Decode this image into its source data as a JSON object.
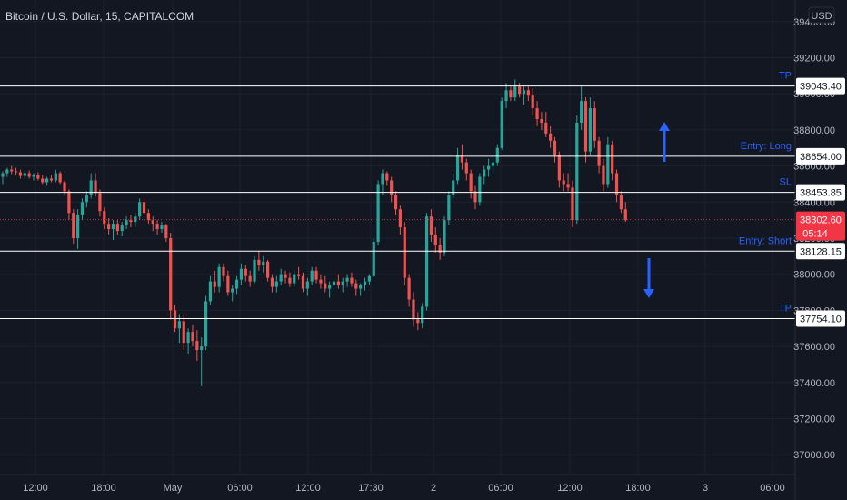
{
  "header": {
    "title": "Bitcoin / U.S. Dollar, 15, CAPITALCOM"
  },
  "price_axis": {
    "currency_label": "USD"
  },
  "colors": {
    "background": "#131722",
    "grid": "#1e222d",
    "up": "#26a69a",
    "down": "#ef5350",
    "level_line": "#ffffff",
    "annotation": "#2962ff",
    "current_price": "#f23645"
  },
  "chart_data": {
    "type": "candlestick",
    "title": "Bitcoin / U.S. Dollar, 15, CAPITALCOM",
    "xlabel": "",
    "ylabel": "",
    "ylim": [
      36890,
      39520
    ],
    "y_ticks": [
      37000,
      37200,
      37400,
      37600,
      37800,
      38000,
      38200,
      38400,
      38600,
      38800,
      39000,
      39200,
      39400
    ],
    "y_tick_labels": [
      "37000.00",
      "37200.00",
      "37400.00",
      "37600.00",
      "37800.00",
      "38000.00",
      "38200.00",
      "38400.00",
      "38600.00",
      "38800.00",
      "39000.00",
      "39200.00",
      "39400.00"
    ],
    "x_tick_labels": [
      "12:00",
      "18:00",
      "May",
      "06:00",
      "12:00",
      "17:30",
      "2",
      "06:00",
      "12:00",
      "18:00",
      "3",
      "06:00"
    ],
    "grid": true,
    "price_scale": "right",
    "candles": [
      [
        38540,
        38570,
        38500,
        38560
      ],
      [
        38560,
        38590,
        38540,
        38580
      ],
      [
        38580,
        38600,
        38555,
        38570
      ],
      [
        38570,
        38590,
        38550,
        38565
      ],
      [
        38565,
        38580,
        38530,
        38545
      ],
      [
        38545,
        38570,
        38530,
        38560
      ],
      [
        38560,
        38575,
        38530,
        38540
      ],
      [
        38540,
        38560,
        38520,
        38550
      ],
      [
        38550,
        38565,
        38520,
        38530
      ],
      [
        38530,
        38550,
        38500,
        38510
      ],
      [
        38510,
        38540,
        38490,
        38530
      ],
      [
        38530,
        38550,
        38510,
        38520
      ],
      [
        38520,
        38580,
        38510,
        38560
      ],
      [
        38560,
        38570,
        38500,
        38510
      ],
      [
        38510,
        38520,
        38440,
        38460
      ],
      [
        38460,
        38470,
        38300,
        38340
      ],
      [
        38340,
        38360,
        38170,
        38200
      ],
      [
        38200,
        38360,
        38140,
        38330
      ],
      [
        38330,
        38420,
        38300,
        38400
      ],
      [
        38400,
        38460,
        38370,
        38440
      ],
      [
        38440,
        38560,
        38420,
        38520
      ],
      [
        38520,
        38560,
        38430,
        38450
      ],
      [
        38450,
        38470,
        38320,
        38350
      ],
      [
        38350,
        38370,
        38250,
        38280
      ],
      [
        38280,
        38310,
        38220,
        38250
      ],
      [
        38250,
        38300,
        38190,
        38280
      ],
      [
        38280,
        38300,
        38220,
        38240
      ],
      [
        38240,
        38290,
        38210,
        38270
      ],
      [
        38270,
        38320,
        38250,
        38300
      ],
      [
        38300,
        38330,
        38260,
        38290
      ],
      [
        38290,
        38340,
        38260,
        38320
      ],
      [
        38320,
        38420,
        38300,
        38400
      ],
      [
        38400,
        38420,
        38320,
        38340
      ],
      [
        38340,
        38360,
        38280,
        38300
      ],
      [
        38300,
        38320,
        38240,
        38280
      ],
      [
        38280,
        38300,
        38220,
        38250
      ],
      [
        38250,
        38290,
        38230,
        38270
      ],
      [
        38270,
        38280,
        38180,
        38200
      ],
      [
        38200,
        38230,
        37750,
        37800
      ],
      [
        37800,
        37830,
        37680,
        37700
      ],
      [
        37700,
        37780,
        37620,
        37740
      ],
      [
        37740,
        37780,
        37580,
        37620
      ],
      [
        37620,
        37700,
        37560,
        37680
      ],
      [
        37680,
        37720,
        37600,
        37630
      ],
      [
        37630,
        37690,
        37520,
        37580
      ],
      [
        37580,
        37650,
        37380,
        37600
      ],
      [
        37600,
        37880,
        37580,
        37850
      ],
      [
        37850,
        37990,
        37830,
        37960
      ],
      [
        37960,
        38020,
        37900,
        37930
      ],
      [
        37930,
        38060,
        37900,
        38040
      ],
      [
        38040,
        38060,
        37960,
        37990
      ],
      [
        37990,
        38020,
        37880,
        37900
      ],
      [
        37900,
        37940,
        37850,
        37920
      ],
      [
        37920,
        37990,
        37890,
        37970
      ],
      [
        37970,
        38060,
        37940,
        38030
      ],
      [
        38030,
        38050,
        37960,
        37990
      ],
      [
        37990,
        38020,
        37930,
        37960
      ],
      [
        37960,
        38100,
        37950,
        38080
      ],
      [
        38080,
        38130,
        38020,
        38050
      ],
      [
        38050,
        38100,
        38010,
        38070
      ],
      [
        38070,
        38080,
        37960,
        37980
      ],
      [
        37980,
        38000,
        37900,
        37930
      ],
      [
        37930,
        37990,
        37900,
        37960
      ],
      [
        37960,
        38030,
        37940,
        38000
      ],
      [
        38000,
        38020,
        37950,
        37980
      ],
      [
        37980,
        38010,
        37930,
        37950
      ],
      [
        37950,
        38020,
        37930,
        38000
      ],
      [
        38000,
        38040,
        37970,
        37990
      ],
      [
        37990,
        38010,
        37900,
        37920
      ],
      [
        37920,
        37980,
        37880,
        37960
      ],
      [
        37960,
        38040,
        37940,
        38020
      ],
      [
        38020,
        38040,
        37950,
        37970
      ],
      [
        37970,
        38000,
        37920,
        37950
      ],
      [
        37950,
        37990,
        37900,
        37920
      ],
      [
        37920,
        37960,
        37870,
        37940
      ],
      [
        37940,
        37980,
        37900,
        37960
      ],
      [
        37960,
        38000,
        37920,
        37940
      ],
      [
        37940,
        37980,
        37900,
        37960
      ],
      [
        37960,
        38000,
        37930,
        37980
      ],
      [
        37980,
        38010,
        37930,
        37950
      ],
      [
        37950,
        37970,
        37880,
        37920
      ],
      [
        37920,
        37950,
        37880,
        37940
      ],
      [
        37940,
        37980,
        37910,
        37960
      ],
      [
        37960,
        38000,
        37940,
        37990
      ],
      [
        37990,
        38200,
        37980,
        38180
      ],
      [
        38180,
        38520,
        38160,
        38500
      ],
      [
        38500,
        38580,
        38440,
        38560
      ],
      [
        38560,
        38570,
        38490,
        38520
      ],
      [
        38520,
        38540,
        38400,
        38440
      ],
      [
        38440,
        38460,
        38330,
        38360
      ],
      [
        38360,
        38380,
        38220,
        38260
      ],
      [
        38260,
        38290,
        37940,
        37980
      ],
      [
        37980,
        38000,
        37820,
        37860
      ],
      [
        37860,
        37900,
        37710,
        37750
      ],
      [
        37750,
        37790,
        37690,
        37730
      ],
      [
        37730,
        37840,
        37700,
        37820
      ],
      [
        37820,
        38340,
        37800,
        38320
      ],
      [
        38320,
        38360,
        38180,
        38220
      ],
      [
        38220,
        38260,
        38120,
        38160
      ],
      [
        38160,
        38200,
        38080,
        38120
      ],
      [
        38120,
        38320,
        38100,
        38300
      ],
      [
        38300,
        38460,
        38270,
        38440
      ],
      [
        38440,
        38560,
        38420,
        38520
      ],
      [
        38520,
        38700,
        38500,
        38660
      ],
      [
        38660,
        38720,
        38580,
        38620
      ],
      [
        38620,
        38640,
        38520,
        38560
      ],
      [
        38560,
        38580,
        38420,
        38460
      ],
      [
        38460,
        38490,
        38360,
        38400
      ],
      [
        38400,
        38560,
        38380,
        38540
      ],
      [
        38540,
        38600,
        38500,
        38580
      ],
      [
        38580,
        38640,
        38540,
        38600
      ],
      [
        38600,
        38660,
        38560,
        38620
      ],
      [
        38620,
        38720,
        38600,
        38700
      ],
      [
        38700,
        38980,
        38690,
        38960
      ],
      [
        38960,
        39060,
        38920,
        39020
      ],
      [
        39020,
        39040,
        38960,
        38980
      ],
      [
        38980,
        39080,
        38960,
        39040
      ],
      [
        39040,
        39060,
        38980,
        39000
      ],
      [
        39000,
        39040,
        38940,
        39020
      ],
      [
        39020,
        39040,
        38960,
        38990
      ],
      [
        38990,
        39030,
        38880,
        38920
      ],
      [
        38920,
        38960,
        38820,
        38860
      ],
      [
        38860,
        38900,
        38800,
        38840
      ],
      [
        38840,
        38900,
        38760,
        38780
      ],
      [
        38780,
        38820,
        38700,
        38740
      ],
      [
        38740,
        38760,
        38620,
        38660
      ],
      [
        38660,
        38680,
        38480,
        38520
      ],
      [
        38520,
        38560,
        38460,
        38500
      ],
      [
        38500,
        38560,
        38460,
        38480
      ],
      [
        38480,
        38520,
        38260,
        38300
      ],
      [
        38300,
        38880,
        38280,
        38840
      ],
      [
        38840,
        39040,
        38800,
        38960
      ],
      [
        38960,
        38980,
        38620,
        38680
      ],
      [
        38680,
        38980,
        38660,
        38920
      ],
      [
        38920,
        38960,
        38700,
        38740
      ],
      [
        38740,
        38760,
        38560,
        38600
      ],
      [
        38600,
        38640,
        38460,
        38500
      ],
      [
        38500,
        38760,
        38480,
        38720
      ],
      [
        38720,
        38740,
        38520,
        38560
      ],
      [
        38560,
        38580,
        38400,
        38440
      ],
      [
        38440,
        38460,
        38340,
        38360
      ],
      [
        38360,
        38400,
        38290,
        38300
      ]
    ],
    "levels": [
      {
        "name": "TP",
        "price": 39043.4,
        "label": "39043.40"
      },
      {
        "name": "Entry: Long",
        "price": 38654.0,
        "label": "38654.00"
      },
      {
        "name": "SL",
        "price": 38453.85,
        "label": "38453.85"
      },
      {
        "name": "Entry: Short",
        "price": 38128.15,
        "label": "38128.15"
      },
      {
        "name": "TP",
        "price": 37754.1,
        "label": "37754.10"
      }
    ],
    "current_price": {
      "price": 38302.6,
      "label": "38302.60",
      "countdown": "05:14"
    },
    "annotations": [
      {
        "type": "arrow",
        "direction": "up",
        "color": "#2962ff"
      },
      {
        "type": "arrow",
        "direction": "down",
        "color": "#2962ff"
      }
    ]
  }
}
